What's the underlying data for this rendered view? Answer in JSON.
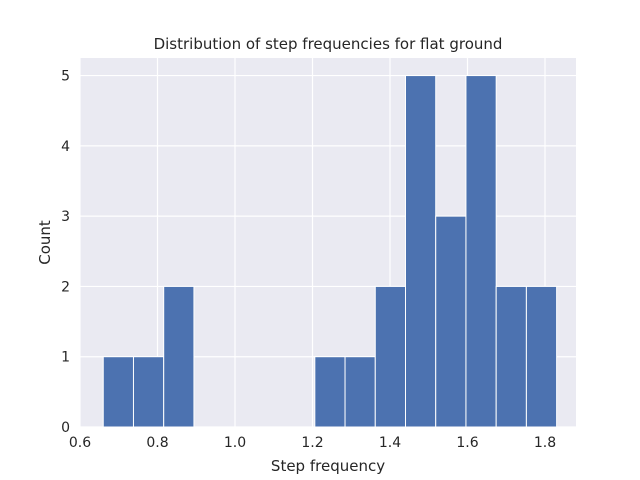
{
  "chart_data": {
    "type": "histogram",
    "title": "Distribution of step frequencies for flat ground",
    "xlabel": "Step frequency",
    "ylabel": "Count",
    "xlim": [
      0.6,
      1.88
    ],
    "ylim": [
      0,
      5.25
    ],
    "xticks": [
      0.6,
      0.8,
      1.0,
      1.2,
      1.4,
      1.6,
      1.8
    ],
    "xtick_labels": [
      "0.6",
      "0.8",
      "1.0",
      "1.2",
      "1.4",
      "1.6",
      "1.8"
    ],
    "yticks": [
      0,
      1,
      2,
      3,
      4,
      5
    ],
    "ytick_labels": [
      "0",
      "1",
      "2",
      "3",
      "4",
      "5"
    ],
    "grid": true,
    "bins": [
      {
        "x0": 0.66,
        "x1": 0.738,
        "count": 1
      },
      {
        "x0": 0.738,
        "x1": 0.816,
        "count": 1
      },
      {
        "x0": 0.816,
        "x1": 0.894,
        "count": 2
      },
      {
        "x0": 0.894,
        "x1": 0.972,
        "count": 0
      },
      {
        "x0": 0.972,
        "x1": 1.05,
        "count": 0
      },
      {
        "x0": 1.05,
        "x1": 1.128,
        "count": 0
      },
      {
        "x0": 1.128,
        "x1": 1.206,
        "count": 0
      },
      {
        "x0": 1.206,
        "x1": 1.284,
        "count": 1
      },
      {
        "x0": 1.284,
        "x1": 1.362,
        "count": 1
      },
      {
        "x0": 1.362,
        "x1": 1.44,
        "count": 2
      },
      {
        "x0": 1.44,
        "x1": 1.518,
        "count": 5
      },
      {
        "x0": 1.518,
        "x1": 1.596,
        "count": 3
      },
      {
        "x0": 1.596,
        "x1": 1.674,
        "count": 5
      },
      {
        "x0": 1.674,
        "x1": 1.752,
        "count": 2
      },
      {
        "x0": 1.752,
        "x1": 1.83,
        "count": 2
      }
    ],
    "bar_color": "#4c72b0",
    "background_color": "#eaeaf2",
    "grid_color": "#ffffff"
  }
}
